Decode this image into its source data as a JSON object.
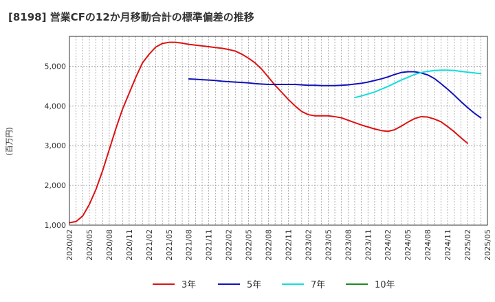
{
  "chart_data": {
    "type": "line",
    "title": "[8198]  営業CFの12か月移動合計の標準偏差の推移",
    "ylabel": "(百万円)",
    "xlabel": "",
    "ylim": [
      1000,
      5750
    ],
    "yticks": [
      1000,
      2000,
      3000,
      4000,
      5000
    ],
    "ytick_labels": [
      "1,000",
      "2,000",
      "3,000",
      "4,000",
      "5,000"
    ],
    "xlim": [
      "2020-02",
      "2025-05"
    ],
    "xtick_labels": [
      "2020/02",
      "2020/05",
      "2020/08",
      "2020/11",
      "2021/02",
      "2021/05",
      "2021/08",
      "2021/11",
      "2022/02",
      "2022/05",
      "2022/08",
      "2022/11",
      "2023/02",
      "2023/05",
      "2023/08",
      "2023/11",
      "2024/02",
      "2024/05",
      "2024/08",
      "2024/11",
      "2025/02",
      "2025/05"
    ],
    "grid": true,
    "legend_position": "bottom",
    "series": [
      {
        "name": "3年",
        "color": "#dd1111",
        "points": [
          [
            "2020-02",
            1060
          ],
          [
            "2020-03",
            1090
          ],
          [
            "2020-04",
            1230
          ],
          [
            "2020-05",
            1520
          ],
          [
            "2020-06",
            1900
          ],
          [
            "2020-07",
            2370
          ],
          [
            "2020-08",
            2900
          ],
          [
            "2020-09",
            3430
          ],
          [
            "2020-10",
            3920
          ],
          [
            "2020-11",
            4320
          ],
          [
            "2020-12",
            4720
          ],
          [
            "2021-01",
            5080
          ],
          [
            "2021-02",
            5300
          ],
          [
            "2021-03",
            5480
          ],
          [
            "2021-04",
            5570
          ],
          [
            "2021-05",
            5600
          ],
          [
            "2021-06",
            5600
          ],
          [
            "2021-07",
            5580
          ],
          [
            "2021-08",
            5550
          ],
          [
            "2021-09",
            5530
          ],
          [
            "2021-10",
            5510
          ],
          [
            "2021-11",
            5490
          ],
          [
            "2021-12",
            5470
          ],
          [
            "2022-01",
            5450
          ],
          [
            "2022-02",
            5420
          ],
          [
            "2022-03",
            5380
          ],
          [
            "2022-04",
            5300
          ],
          [
            "2022-05",
            5200
          ],
          [
            "2022-06",
            5080
          ],
          [
            "2022-07",
            4920
          ],
          [
            "2022-08",
            4720
          ],
          [
            "2022-09",
            4520
          ],
          [
            "2022-10",
            4340
          ],
          [
            "2022-11",
            4160
          ],
          [
            "2022-12",
            4000
          ],
          [
            "2023-01",
            3860
          ],
          [
            "2023-02",
            3780
          ],
          [
            "2023-03",
            3750
          ],
          [
            "2023-04",
            3750
          ],
          [
            "2023-05",
            3750
          ],
          [
            "2023-06",
            3730
          ],
          [
            "2023-07",
            3700
          ],
          [
            "2023-08",
            3640
          ],
          [
            "2023-09",
            3580
          ],
          [
            "2023-10",
            3520
          ],
          [
            "2023-11",
            3470
          ],
          [
            "2023-12",
            3420
          ],
          [
            "2024-01",
            3380
          ],
          [
            "2024-02",
            3360
          ],
          [
            "2024-03",
            3400
          ],
          [
            "2024-04",
            3490
          ],
          [
            "2024-05",
            3590
          ],
          [
            "2024-06",
            3680
          ],
          [
            "2024-07",
            3730
          ],
          [
            "2024-08",
            3720
          ],
          [
            "2024-09",
            3670
          ],
          [
            "2024-10",
            3600
          ],
          [
            "2024-11",
            3480
          ],
          [
            "2024-12",
            3350
          ],
          [
            "2025-01",
            3200
          ],
          [
            "2025-02",
            3060
          ]
        ]
      },
      {
        "name": "5年",
        "color": "#1111bb",
        "points": [
          [
            "2021-08",
            4680
          ],
          [
            "2021-09",
            4670
          ],
          [
            "2021-10",
            4660
          ],
          [
            "2021-11",
            4650
          ],
          [
            "2021-12",
            4640
          ],
          [
            "2022-01",
            4620
          ],
          [
            "2022-02",
            4610
          ],
          [
            "2022-03",
            4600
          ],
          [
            "2022-04",
            4590
          ],
          [
            "2022-05",
            4580
          ],
          [
            "2022-06",
            4560
          ],
          [
            "2022-07",
            4550
          ],
          [
            "2022-08",
            4540
          ],
          [
            "2022-09",
            4540
          ],
          [
            "2022-10",
            4540
          ],
          [
            "2022-11",
            4540
          ],
          [
            "2022-12",
            4540
          ],
          [
            "2023-01",
            4530
          ],
          [
            "2023-02",
            4520
          ],
          [
            "2023-03",
            4520
          ],
          [
            "2023-04",
            4510
          ],
          [
            "2023-05",
            4510
          ],
          [
            "2023-06",
            4510
          ],
          [
            "2023-07",
            4520
          ],
          [
            "2023-08",
            4530
          ],
          [
            "2023-09",
            4550
          ],
          [
            "2023-10",
            4570
          ],
          [
            "2023-11",
            4600
          ],
          [
            "2023-12",
            4640
          ],
          [
            "2024-01",
            4680
          ],
          [
            "2024-02",
            4730
          ],
          [
            "2024-03",
            4790
          ],
          [
            "2024-04",
            4840
          ],
          [
            "2024-05",
            4860
          ],
          [
            "2024-06",
            4860
          ],
          [
            "2024-07",
            4830
          ],
          [
            "2024-08",
            4780
          ],
          [
            "2024-09",
            4690
          ],
          [
            "2024-10",
            4560
          ],
          [
            "2024-11",
            4420
          ],
          [
            "2024-12",
            4270
          ],
          [
            "2025-01",
            4110
          ],
          [
            "2025-02",
            3960
          ],
          [
            "2025-03",
            3820
          ],
          [
            "2025-04",
            3700
          ]
        ]
      },
      {
        "name": "7年",
        "color": "#11dddd",
        "points": [
          [
            "2023-09",
            4210
          ],
          [
            "2023-10",
            4250
          ],
          [
            "2023-11",
            4300
          ],
          [
            "2023-12",
            4350
          ],
          [
            "2024-01",
            4420
          ],
          [
            "2024-02",
            4490
          ],
          [
            "2024-03",
            4570
          ],
          [
            "2024-04",
            4650
          ],
          [
            "2024-05",
            4720
          ],
          [
            "2024-06",
            4790
          ],
          [
            "2024-07",
            4840
          ],
          [
            "2024-08",
            4870
          ],
          [
            "2024-09",
            4890
          ],
          [
            "2024-10",
            4900
          ],
          [
            "2024-11",
            4900
          ],
          [
            "2024-12",
            4890
          ],
          [
            "2025-01",
            4870
          ],
          [
            "2025-02",
            4850
          ],
          [
            "2025-03",
            4830
          ],
          [
            "2025-04",
            4810
          ]
        ]
      },
      {
        "name": "10年",
        "color": "#228822",
        "points": []
      }
    ]
  }
}
